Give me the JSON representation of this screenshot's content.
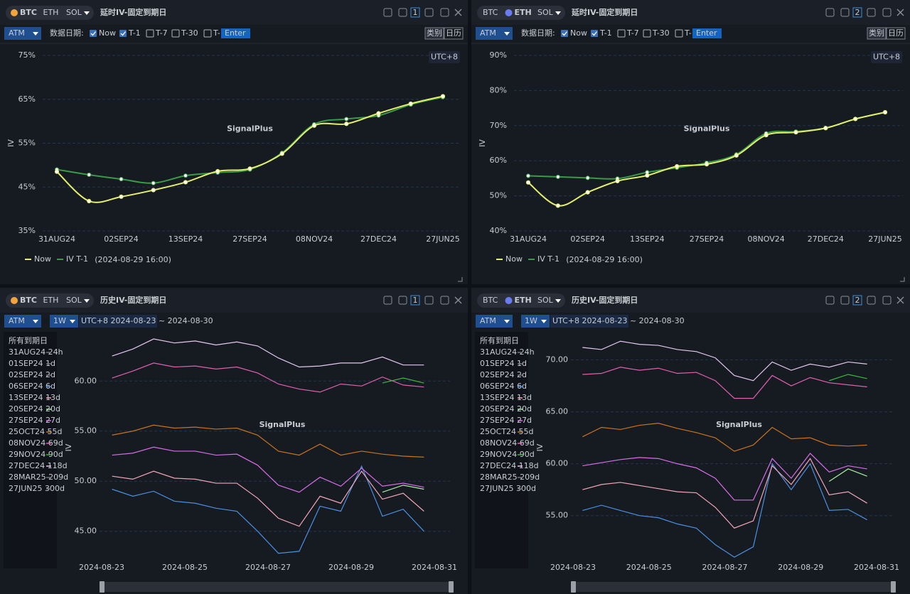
{
  "panels": [
    {
      "assets": [
        "BTC",
        "ETH",
        "SOL"
      ],
      "active": 0,
      "title": "延时IV-固定到期日",
      "index": "1",
      "mode": "ATM",
      "date_label": "数据日期:",
      "options": [
        "Now",
        "T-1",
        "T-7",
        "T-30",
        "T-"
      ],
      "checked": [
        true,
        true,
        false,
        false,
        false
      ],
      "input_placeholder": "Enter",
      "buttons": [
        "类别",
        "日历"
      ],
      "timezone": "UTC+8",
      "watermark": "SignalPlus"
    },
    {
      "assets": [
        "BTC",
        "ETH",
        "SOL"
      ],
      "active": 1,
      "title": "延时IV-固定到期日",
      "index": "2",
      "mode": "ATM",
      "date_label": "数据日期:",
      "options": [
        "Now",
        "T-1",
        "T-7",
        "T-30",
        "T-"
      ],
      "checked": [
        true,
        true,
        false,
        false,
        false
      ],
      "input_placeholder": "Enter",
      "buttons": [
        "类别",
        "日历"
      ],
      "timezone": "UTC+8",
      "watermark": "SignalPlus"
    },
    {
      "assets": [
        "BTC",
        "ETH",
        "SOL"
      ],
      "active": 0,
      "title": "历史IV-固定到期日",
      "index": "1",
      "mode": "ATM",
      "period": "1W",
      "range_label": "UTC+8 2024-08-23 ~ 2024-08-30",
      "watermark": "SignalPlus"
    },
    {
      "assets": [
        "BTC",
        "ETH",
        "SOL"
      ],
      "active": 1,
      "title": "历史IV-固定到期日",
      "index": "2",
      "mode": "ATM",
      "period": "1W",
      "range_label": "UTC+8 2024-08-23 ~ 2024-08-30",
      "watermark": "SignalPlus"
    }
  ],
  "chart_data": [
    {
      "type": "line",
      "categories": [
        "31AUG24",
        null,
        "02SEP24",
        null,
        "13SEP24",
        null,
        "27SEP24",
        null,
        "08NOV24",
        null,
        "27DEC24",
        null,
        "27JUN25"
      ],
      "series": [
        {
          "name": "Now",
          "color": "#e4ef6b",
          "values": [
            48.5,
            41.8,
            42.8,
            44.3,
            46.1,
            48.6,
            49.2,
            52.6,
            59.0,
            59.4,
            61.8,
            64.0,
            65.7
          ]
        },
        {
          "name": "IV T-1",
          "legend_suffix": "(2024-08-29 16:00)",
          "color": "#3a9a48",
          "values": [
            49.0,
            47.8,
            46.8,
            45.9,
            47.6,
            48.3,
            49.0,
            52.8,
            59.3,
            60.5,
            61.3,
            63.8,
            65.5
          ]
        }
      ],
      "ylabel": "IV",
      "ylim": [
        35,
        75
      ],
      "yticks": [
        {
          "value": 35,
          "label": "35%"
        },
        {
          "value": 45,
          "label": "45%"
        },
        {
          "value": 55,
          "label": "55%"
        },
        {
          "value": 65,
          "label": "65%"
        },
        {
          "value": 75,
          "label": "75%"
        }
      ],
      "grid": true,
      "markers": true
    },
    {
      "type": "line",
      "categories": [
        "31AUG24",
        null,
        "02SEP24",
        null,
        "13SEP24",
        null,
        "27SEP24",
        null,
        "08NOV24",
        null,
        "27DEC24",
        null,
        "27JUN25"
      ],
      "series": [
        {
          "name": "Now",
          "color": "#e4ef6b",
          "values": [
            53.8,
            47.2,
            51.0,
            54.2,
            55.8,
            58.4,
            59.0,
            61.5,
            67.3,
            68.1,
            69.3,
            71.9,
            73.8
          ]
        },
        {
          "name": "IV T-1",
          "legend_suffix": "(2024-08-29 16:00)",
          "color": "#3a9a48",
          "values": [
            55.7,
            55.4,
            55.1,
            54.9,
            56.7,
            58.0,
            59.4,
            61.8,
            67.8,
            68.3,
            69.3,
            71.9,
            73.8
          ]
        }
      ],
      "ylabel": "IV",
      "ylim": [
        40,
        90
      ],
      "yticks": [
        {
          "value": 40,
          "label": "40%"
        },
        {
          "value": 50,
          "label": "50%"
        },
        {
          "value": 60,
          "label": "60%"
        },
        {
          "value": 70,
          "label": "70%"
        },
        {
          "value": 80,
          "label": "80%"
        },
        {
          "value": 90,
          "label": "90%"
        }
      ],
      "grid": true,
      "markers": true
    },
    {
      "type": "timeseries",
      "legend_title": "所有到期日",
      "x": [
        "2024-08-23 06:00",
        "2024-08-23 18:00",
        "2024-08-24 06:00",
        "2024-08-24 18:00",
        "2024-08-25 06:00",
        "2024-08-25 18:00",
        "2024-08-26 06:00",
        "2024-08-26 18:00",
        "2024-08-27 06:00",
        "2024-08-27 18:00",
        "2024-08-28 06:00",
        "2024-08-28 18:00",
        "2024-08-29 06:00",
        "2024-08-29 18:00",
        "2024-08-30 06:00",
        "2024-08-30 18:00"
      ],
      "xlim": [
        "2024-08-23 00:00",
        "2024-08-31 00:00"
      ],
      "xticks": [
        "2024-08-23",
        "2024-08-25",
        "2024-08-27",
        "2024-08-29",
        "2024-08-31"
      ],
      "ylabel": "IV",
      "ylim": [
        42,
        64.7
      ],
      "yticks": [
        {
          "value": 45,
          "label": "45.00"
        },
        {
          "value": 50,
          "label": "50.00"
        },
        {
          "value": 55,
          "label": "55.00"
        },
        {
          "value": 60,
          "label": "60.00"
        }
      ],
      "grid": true,
      "series": [
        {
          "name": "31AUG24 24h",
          "color": "#777777",
          "values": null
        },
        {
          "name": "01SEP24 1d",
          "color": "#777777",
          "values": null
        },
        {
          "name": "02SEP24 2d",
          "color": "#777777",
          "values": null
        },
        {
          "name": "06SEP24 6d",
          "color": "#4a90e2",
          "values": [
            49.2,
            48.5,
            49.0,
            48.0,
            47.8,
            47.3,
            47.0,
            45.0,
            42.8,
            43.0,
            47.5,
            47.0,
            51.5,
            46.5,
            47.2,
            45.0
          ]
        },
        {
          "name": "13SEP24 13d",
          "color": "#f4a6b8",
          "values": [
            50.5,
            50.2,
            51.0,
            50.3,
            50.2,
            49.8,
            49.8,
            48.3,
            46.3,
            45.5,
            48.5,
            47.8,
            51.0,
            48.2,
            48.8,
            47.0
          ]
        },
        {
          "name": "20SEP24 20d",
          "color": "#a8f0a0",
          "values": [
            null,
            null,
            null,
            null,
            null,
            null,
            null,
            null,
            null,
            null,
            null,
            null,
            null,
            48.9,
            49.6,
            49.2
          ]
        },
        {
          "name": "27SEP24 27d",
          "color": "#d86ee8",
          "values": [
            52.6,
            52.8,
            53.4,
            53.0,
            53.0,
            52.6,
            52.7,
            51.6,
            49.6,
            48.9,
            50.4,
            49.5,
            51.3,
            49.5,
            49.8,
            49.4
          ]
        },
        {
          "name": "25OCT24 55d",
          "color": "#c8731e",
          "values": [
            54.6,
            55.0,
            55.6,
            55.3,
            55.4,
            55.2,
            55.3,
            54.6,
            53.0,
            52.6,
            53.7,
            52.6,
            53.0,
            52.7,
            52.5,
            52.4
          ]
        },
        {
          "name": "08NOV24 69d",
          "color": "#e060b0",
          "values": [
            60.3,
            61.0,
            61.8,
            61.4,
            61.5,
            61.2,
            61.4,
            60.8,
            59.7,
            59.2,
            58.9,
            59.7,
            59.5,
            60.4,
            59.6,
            59.4
          ]
        },
        {
          "name": "29NOV24 90d",
          "color": "#3cb83c",
          "values": [
            null,
            null,
            null,
            null,
            null,
            null,
            null,
            null,
            null,
            null,
            null,
            null,
            null,
            59.8,
            60.3,
            59.8
          ]
        },
        {
          "name": "27DEC24 118d",
          "color": "#e6c8f0",
          "values": [
            62.5,
            63.2,
            64.2,
            63.8,
            64.0,
            63.6,
            63.9,
            63.5,
            62.3,
            61.4,
            61.5,
            61.8,
            61.8,
            62.4,
            61.6,
            61.6
          ]
        },
        {
          "name": "28MAR25 209d",
          "color": "#777777",
          "values": null
        },
        {
          "name": "27JUN25 300d",
          "color": "#777777",
          "values": null
        }
      ]
    },
    {
      "type": "timeseries",
      "legend_title": "所有到期日",
      "x": [
        "2024-08-23 06:00",
        "2024-08-23 18:00",
        "2024-08-24 06:00",
        "2024-08-24 18:00",
        "2024-08-25 06:00",
        "2024-08-25 18:00",
        "2024-08-26 06:00",
        "2024-08-26 18:00",
        "2024-08-27 06:00",
        "2024-08-27 18:00",
        "2024-08-28 06:00",
        "2024-08-28 18:00",
        "2024-08-29 06:00",
        "2024-08-29 18:00",
        "2024-08-30 06:00",
        "2024-08-30 18:00"
      ],
      "xlim": [
        "2024-08-23 00:00",
        "2024-08-31 00:00"
      ],
      "xticks": [
        "2024-08-23",
        "2024-08-25",
        "2024-08-27",
        "2024-08-29",
        "2024-08-31"
      ],
      "ylabel": "IV",
      "ylim": [
        50.6,
        72.5
      ],
      "yticks": [
        {
          "value": 55,
          "label": "55.00"
        },
        {
          "value": 60,
          "label": "60.00"
        },
        {
          "value": 65,
          "label": "65.00"
        },
        {
          "value": 70,
          "label": "70.00"
        }
      ],
      "grid": true,
      "series": [
        {
          "name": "31AUG24 24h",
          "color": "#777777",
          "values": null
        },
        {
          "name": "01SEP24 1d",
          "color": "#777777",
          "values": null
        },
        {
          "name": "02SEP24 2d",
          "color": "#777777",
          "values": null
        },
        {
          "name": "06SEP24 6d",
          "color": "#4a90e2",
          "values": [
            55.5,
            56.0,
            55.5,
            55.0,
            54.8,
            54.2,
            53.8,
            52.2,
            51.0,
            52.0,
            60.0,
            57.5,
            60.0,
            55.5,
            55.6,
            54.6
          ]
        },
        {
          "name": "13SEP24 13d",
          "color": "#f4a6b8",
          "values": [
            57.5,
            58.0,
            58.2,
            57.9,
            57.6,
            57.3,
            57.2,
            55.8,
            53.8,
            54.5,
            59.8,
            58.0,
            60.5,
            57.0,
            57.3,
            56.2
          ]
        },
        {
          "name": "20SEP24 20d",
          "color": "#a8f0a0",
          "values": [
            null,
            null,
            null,
            null,
            null,
            null,
            null,
            null,
            null,
            null,
            null,
            null,
            null,
            58.3,
            59.5,
            58.8
          ]
        },
        {
          "name": "27SEP24 27d",
          "color": "#d86ee8",
          "values": [
            59.8,
            60.1,
            60.4,
            60.6,
            60.5,
            60.0,
            59.6,
            58.6,
            56.5,
            56.5,
            60.5,
            58.6,
            61.0,
            59.2,
            59.8,
            59.5
          ]
        },
        {
          "name": "25OCT24 55d",
          "color": "#c8731e",
          "values": [
            62.6,
            63.5,
            63.3,
            63.7,
            63.9,
            63.4,
            63.0,
            62.5,
            61.2,
            61.8,
            63.5,
            62.4,
            62.5,
            61.8,
            61.7,
            61.8
          ]
        },
        {
          "name": "08NOV24 69d",
          "color": "#e060b0",
          "values": [
            68.6,
            68.7,
            69.3,
            69.0,
            69.2,
            68.7,
            68.8,
            68.0,
            66.3,
            66.3,
            68.5,
            67.5,
            68.3,
            67.8,
            67.6,
            67.4
          ]
        },
        {
          "name": "29NOV24 90d",
          "color": "#3cb83c",
          "values": [
            null,
            null,
            null,
            null,
            null,
            null,
            null,
            null,
            null,
            null,
            null,
            null,
            null,
            68.0,
            68.6,
            68.2
          ]
        },
        {
          "name": "27DEC24 118d",
          "color": "#e6c8f0",
          "values": [
            71.2,
            71.0,
            71.8,
            71.5,
            71.4,
            71.0,
            70.8,
            70.2,
            68.5,
            68.0,
            69.8,
            69.0,
            69.6,
            69.3,
            69.8,
            69.6
          ]
        },
        {
          "name": "28MAR25 209d",
          "color": "#777777",
          "values": null
        },
        {
          "name": "27JUN25 300d",
          "color": "#777777",
          "values": null
        }
      ]
    }
  ]
}
